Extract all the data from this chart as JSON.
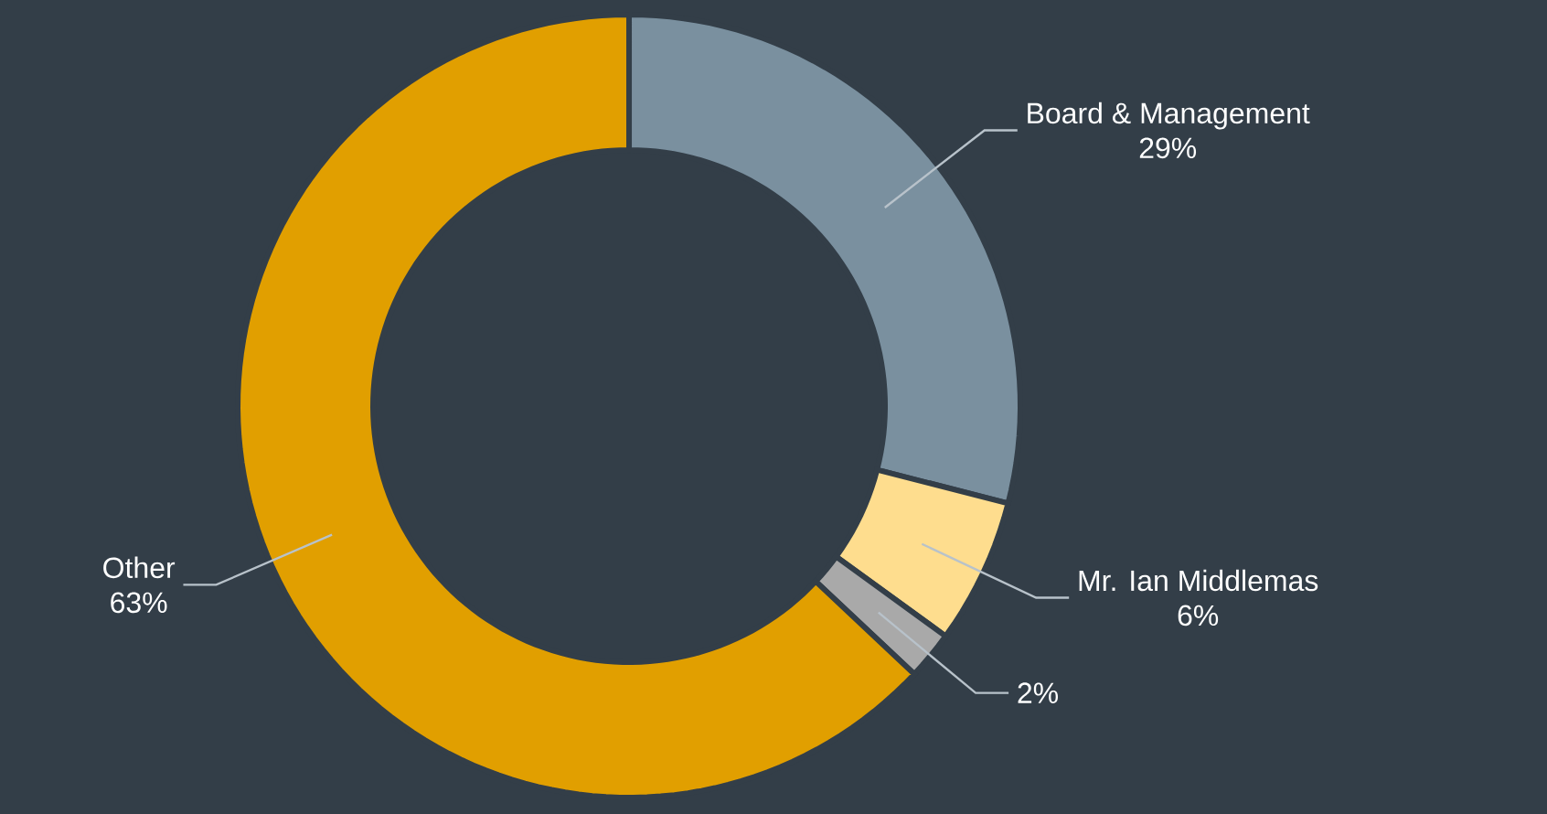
{
  "chart_data": {
    "type": "donut",
    "categories": [
      "Board & Management",
      "Mr. Ian Middlemas",
      null,
      "Other"
    ],
    "values": [
      29,
      6,
      2,
      63
    ],
    "colors": [
      "#7a909f",
      "#fedd8e",
      "#a9a9a9",
      "#e19f00"
    ],
    "value_labels": [
      "29%",
      "6%",
      "2%",
      "63%"
    ]
  }
}
